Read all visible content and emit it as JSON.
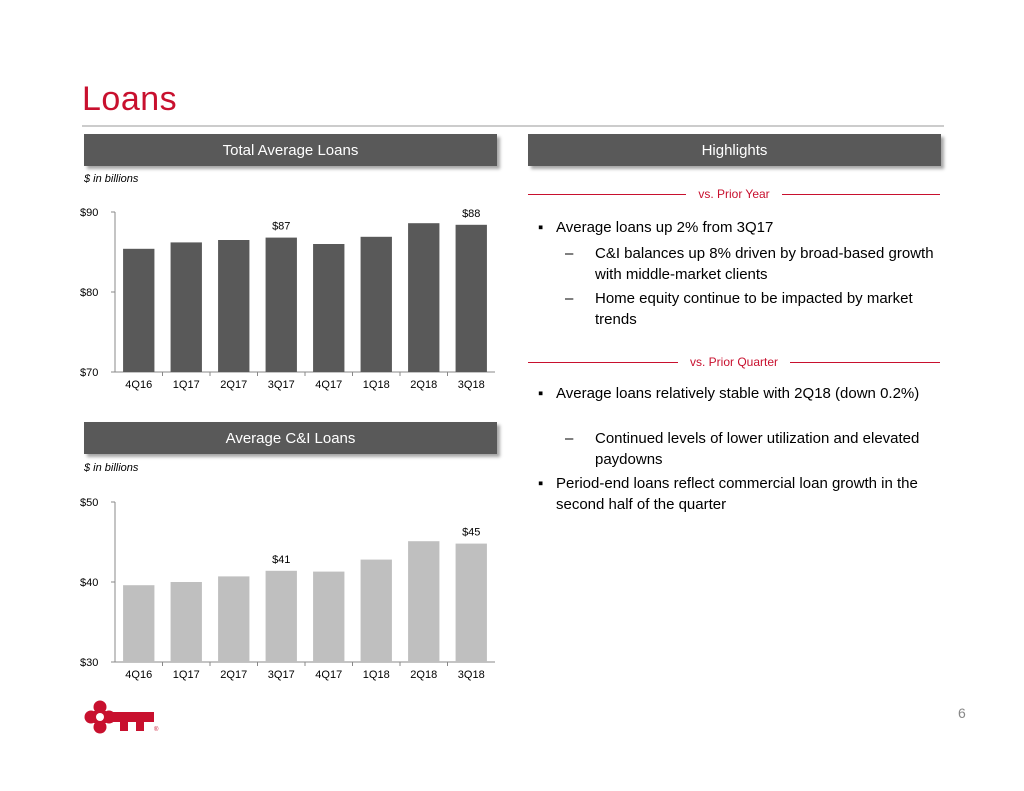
{
  "title": "Loans",
  "left_panel": {
    "chart1_header": "Total Average Loans",
    "chart1_units": "$ in billions",
    "chart2_header": "Average C&I Loans",
    "chart2_units": "$ in billions"
  },
  "highlights": {
    "header": "Highlights",
    "vs_prior_year": {
      "label": "vs. Prior Year",
      "bullet": "Average loans up 2% from 3Q17",
      "subs": [
        "C&I balances up 8% driven by broad-based growth with middle-market clients",
        "Home equity continue to be impacted by market trends"
      ]
    },
    "vs_prior_quarter": {
      "label": "vs. Prior Quarter",
      "bullet1": "Average loans relatively stable with 2Q18 (down 0.2%)",
      "sub": "Continued levels of lower utilization and elevated paydowns",
      "bullet2": "Period-end loans reflect commercial loan growth in the second half of the quarter"
    },
    "bullet_mark": "▪",
    "sub_mark": "–"
  },
  "page_number": "6",
  "colors": {
    "brand_red": "#c8102e",
    "bar_dark": "#595959",
    "bar_light": "#bfbfbf",
    "header_bg": "#595959"
  },
  "logo_icon": "key-logo-icon",
  "chart_data": [
    {
      "type": "bar",
      "title": "Total Average Loans",
      "categories": [
        "4Q16",
        "1Q17",
        "2Q17",
        "3Q17",
        "4Q17",
        "1Q18",
        "2Q18",
        "3Q18"
      ],
      "values": [
        85.4,
        86.2,
        86.5,
        86.8,
        86.0,
        86.9,
        88.6,
        88.4
      ],
      "data_labels": {
        "3": "$87",
        "7": "$88"
      },
      "ylim": [
        70,
        90
      ],
      "yticks": [
        {
          "v": 70,
          "label": "$70"
        },
        {
          "v": 80,
          "label": "$80"
        },
        {
          "v": 90,
          "label": "$90"
        }
      ],
      "xlabel": "",
      "ylabel": "",
      "grid": false
    },
    {
      "type": "bar",
      "title": "Average C&I Loans",
      "categories": [
        "4Q16",
        "1Q17",
        "2Q17",
        "3Q17",
        "4Q17",
        "1Q18",
        "2Q18",
        "3Q18"
      ],
      "values": [
        39.6,
        40.0,
        40.7,
        41.4,
        41.3,
        42.8,
        45.1,
        44.8
      ],
      "data_labels": {
        "3": "$41",
        "7": "$45"
      },
      "ylim": [
        30,
        50
      ],
      "yticks": [
        {
          "v": 30,
          "label": "$30"
        },
        {
          "v": 40,
          "label": "$40"
        },
        {
          "v": 50,
          "label": "$50"
        }
      ],
      "xlabel": "",
      "ylabel": "",
      "grid": false
    }
  ]
}
